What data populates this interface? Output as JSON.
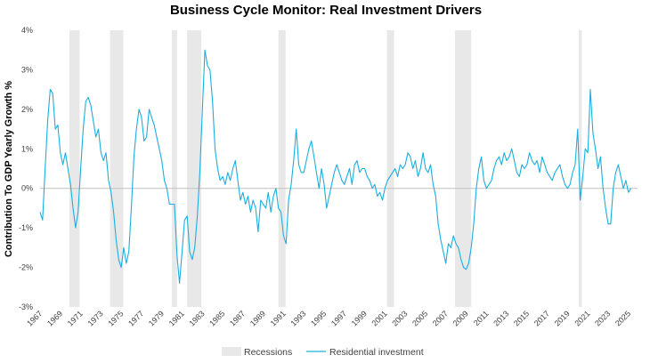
{
  "chart_data": {
    "type": "line",
    "title": "Business Cycle Monitor: Real Investment Drivers",
    "ylabel": "Contribution To GDP Yearly Growth %",
    "xlabel": "",
    "xlim": [
      1967.0,
      2025.9
    ],
    "ylim": [
      -3,
      4
    ],
    "y_ticks": [
      4,
      3,
      2,
      1,
      0,
      -1,
      -2,
      -3
    ],
    "y_tick_labels": [
      "4%",
      "3%",
      "2%",
      "1%",
      "0%",
      "-1%",
      "-2%",
      "-3%"
    ],
    "x_ticks": [
      1967,
      1969,
      1971,
      1973,
      1975,
      1977,
      1979,
      1981,
      1983,
      1985,
      1987,
      1989,
      1991,
      1993,
      1995,
      1997,
      1999,
      2001,
      2003,
      2005,
      2007,
      2009,
      2011,
      2013,
      2015,
      2017,
      2019,
      2021,
      2023,
      2025
    ],
    "x_tick_labels": [
      "1967",
      "1969",
      "1971",
      "1973",
      "1975",
      "1977",
      "1979",
      "1981",
      "1983",
      "1985",
      "1987",
      "1989",
      "1991",
      "1993",
      "1995",
      "1997",
      "1999",
      "2001",
      "2003",
      "2005",
      "2007",
      "2009",
      "2011",
      "2013",
      "2015",
      "2017",
      "2019",
      "2021",
      "2023",
      "2025"
    ],
    "recessions": [
      [
        1969.9,
        1970.9
      ],
      [
        1973.9,
        1975.2
      ],
      [
        1980.0,
        1980.5
      ],
      [
        1981.5,
        1982.9
      ],
      [
        1990.5,
        1991.2
      ],
      [
        2001.2,
        2001.9
      ],
      [
        2007.9,
        2009.5
      ],
      [
        2020.1,
        2020.4
      ]
    ],
    "series": [
      {
        "name": "Residential investment",
        "color": "#1aafe0",
        "points": [
          [
            1967.0,
            -0.6
          ],
          [
            1967.25,
            -0.8
          ],
          [
            1967.5,
            0.5
          ],
          [
            1967.75,
            1.7
          ],
          [
            1968.0,
            2.5
          ],
          [
            1968.25,
            2.4
          ],
          [
            1968.5,
            1.5
          ],
          [
            1968.75,
            1.6
          ],
          [
            1969.0,
            0.9
          ],
          [
            1969.25,
            0.6
          ],
          [
            1969.5,
            0.9
          ],
          [
            1969.75,
            0.5
          ],
          [
            1970.0,
            0.1
          ],
          [
            1970.25,
            -0.5
          ],
          [
            1970.5,
            -1.0
          ],
          [
            1970.75,
            -0.6
          ],
          [
            1971.0,
            0.5
          ],
          [
            1971.25,
            1.5
          ],
          [
            1971.5,
            2.2
          ],
          [
            1971.75,
            2.3
          ],
          [
            1972.0,
            2.1
          ],
          [
            1972.25,
            1.7
          ],
          [
            1972.5,
            1.3
          ],
          [
            1972.75,
            1.5
          ],
          [
            1973.0,
            0.9
          ],
          [
            1973.25,
            0.7
          ],
          [
            1973.5,
            0.9
          ],
          [
            1973.75,
            0.2
          ],
          [
            1974.0,
            -0.1
          ],
          [
            1974.25,
            -0.6
          ],
          [
            1974.5,
            -1.3
          ],
          [
            1974.75,
            -1.8
          ],
          [
            1975.0,
            -2.0
          ],
          [
            1975.25,
            -1.5
          ],
          [
            1975.5,
            -1.9
          ],
          [
            1975.75,
            -1.6
          ],
          [
            1976.0,
            -0.5
          ],
          [
            1976.25,
            0.8
          ],
          [
            1976.5,
            1.5
          ],
          [
            1976.75,
            2.0
          ],
          [
            1977.0,
            1.8
          ],
          [
            1977.25,
            1.2
          ],
          [
            1977.5,
            1.3
          ],
          [
            1977.75,
            2.0
          ],
          [
            1978.0,
            1.8
          ],
          [
            1978.25,
            1.6
          ],
          [
            1978.5,
            1.3
          ],
          [
            1978.75,
            1.0
          ],
          [
            1979.0,
            0.7
          ],
          [
            1979.25,
            0.2
          ],
          [
            1979.5,
            0.0
          ],
          [
            1979.75,
            -0.4
          ],
          [
            1980.0,
            -0.4
          ],
          [
            1980.25,
            -0.4
          ],
          [
            1980.5,
            -1.7
          ],
          [
            1980.75,
            -2.4
          ],
          [
            1981.0,
            -1.6
          ],
          [
            1981.25,
            -0.8
          ],
          [
            1981.5,
            -0.7
          ],
          [
            1981.75,
            -1.6
          ],
          [
            1982.0,
            -1.8
          ],
          [
            1982.25,
            -1.5
          ],
          [
            1982.5,
            -0.7
          ],
          [
            1982.75,
            0.4
          ],
          [
            1983.0,
            2.0
          ],
          [
            1983.25,
            3.5
          ],
          [
            1983.5,
            3.1
          ],
          [
            1983.75,
            3.0
          ],
          [
            1984.0,
            2.2
          ],
          [
            1984.25,
            1.0
          ],
          [
            1984.5,
            0.5
          ],
          [
            1984.75,
            0.2
          ],
          [
            1985.0,
            0.3
          ],
          [
            1985.25,
            0.1
          ],
          [
            1985.5,
            0.4
          ],
          [
            1985.75,
            0.2
          ],
          [
            1986.0,
            0.5
          ],
          [
            1986.25,
            0.7
          ],
          [
            1986.5,
            0.2
          ],
          [
            1986.75,
            -0.3
          ],
          [
            1987.0,
            -0.1
          ],
          [
            1987.25,
            -0.4
          ],
          [
            1987.5,
            -0.2
          ],
          [
            1987.75,
            -0.6
          ],
          [
            1988.0,
            -0.3
          ],
          [
            1988.25,
            -0.5
          ],
          [
            1988.5,
            -1.1
          ],
          [
            1988.75,
            -0.3
          ],
          [
            1989.0,
            -0.4
          ],
          [
            1989.25,
            -0.5
          ],
          [
            1989.5,
            -0.1
          ],
          [
            1989.75,
            -0.6
          ],
          [
            1990.0,
            -0.2
          ],
          [
            1990.25,
            0.0
          ],
          [
            1990.5,
            -0.5
          ],
          [
            1990.75,
            -0.6
          ],
          [
            1991.0,
            -1.2
          ],
          [
            1991.25,
            -1.4
          ],
          [
            1991.5,
            -0.3
          ],
          [
            1991.75,
            0.1
          ],
          [
            1992.0,
            0.7
          ],
          [
            1992.25,
            1.5
          ],
          [
            1992.5,
            0.6
          ],
          [
            1992.75,
            0.4
          ],
          [
            1993.0,
            0.4
          ],
          [
            1993.25,
            0.7
          ],
          [
            1993.5,
            1.0
          ],
          [
            1993.75,
            1.2
          ],
          [
            1994.0,
            0.8
          ],
          [
            1994.25,
            0.4
          ],
          [
            1994.5,
            0.0
          ],
          [
            1994.75,
            0.5
          ],
          [
            1995.0,
            0.1
          ],
          [
            1995.25,
            -0.5
          ],
          [
            1995.5,
            -0.2
          ],
          [
            1995.75,
            0.1
          ],
          [
            1996.0,
            0.4
          ],
          [
            1996.25,
            0.6
          ],
          [
            1996.5,
            0.4
          ],
          [
            1996.75,
            0.2
          ],
          [
            1997.0,
            0.1
          ],
          [
            1997.25,
            0.3
          ],
          [
            1997.5,
            0.5
          ],
          [
            1997.75,
            0.1
          ],
          [
            1998.0,
            0.6
          ],
          [
            1998.25,
            0.7
          ],
          [
            1998.5,
            0.4
          ],
          [
            1998.75,
            0.5
          ],
          [
            1999.0,
            0.5
          ],
          [
            1999.25,
            0.3
          ],
          [
            1999.5,
            0.2
          ],
          [
            1999.75,
            0.0
          ],
          [
            2000.0,
            0.1
          ],
          [
            2000.25,
            -0.2
          ],
          [
            2000.5,
            -0.1
          ],
          [
            2000.75,
            -0.3
          ],
          [
            2001.0,
            0.0
          ],
          [
            2001.25,
            0.2
          ],
          [
            2001.5,
            0.3
          ],
          [
            2001.75,
            0.4
          ],
          [
            2002.0,
            0.5
          ],
          [
            2002.25,
            0.3
          ],
          [
            2002.5,
            0.6
          ],
          [
            2002.75,
            0.5
          ],
          [
            2003.0,
            0.6
          ],
          [
            2003.25,
            0.9
          ],
          [
            2003.5,
            0.8
          ],
          [
            2003.75,
            0.5
          ],
          [
            2004.0,
            0.7
          ],
          [
            2004.25,
            0.3
          ],
          [
            2004.5,
            0.5
          ],
          [
            2004.75,
            0.9
          ],
          [
            2005.0,
            0.5
          ],
          [
            2005.25,
            0.4
          ],
          [
            2005.5,
            0.6
          ],
          [
            2005.75,
            0.1
          ],
          [
            2006.0,
            -0.2
          ],
          [
            2006.25,
            -0.9
          ],
          [
            2006.5,
            -1.3
          ],
          [
            2006.75,
            -1.6
          ],
          [
            2007.0,
            -1.9
          ],
          [
            2007.25,
            -1.4
          ],
          [
            2007.5,
            -1.5
          ],
          [
            2007.75,
            -1.2
          ],
          [
            2008.0,
            -1.4
          ],
          [
            2008.25,
            -1.5
          ],
          [
            2008.5,
            -1.8
          ],
          [
            2008.75,
            -2.0
          ],
          [
            2009.0,
            -2.05
          ],
          [
            2009.25,
            -1.9
          ],
          [
            2009.5,
            -1.5
          ],
          [
            2009.75,
            -0.9
          ],
          [
            2010.0,
            0.0
          ],
          [
            2010.25,
            0.5
          ],
          [
            2010.5,
            0.8
          ],
          [
            2010.75,
            0.2
          ],
          [
            2011.0,
            0.0
          ],
          [
            2011.25,
            0.1
          ],
          [
            2011.5,
            0.2
          ],
          [
            2011.75,
            0.5
          ],
          [
            2012.0,
            0.7
          ],
          [
            2012.25,
            0.8
          ],
          [
            2012.5,
            0.6
          ],
          [
            2012.75,
            0.9
          ],
          [
            2013.0,
            0.7
          ],
          [
            2013.25,
            0.8
          ],
          [
            2013.5,
            1.0
          ],
          [
            2013.75,
            0.7
          ],
          [
            2014.0,
            0.4
          ],
          [
            2014.25,
            0.3
          ],
          [
            2014.5,
            0.6
          ],
          [
            2014.75,
            0.5
          ],
          [
            2015.0,
            0.6
          ],
          [
            2015.25,
            0.9
          ],
          [
            2015.5,
            0.7
          ],
          [
            2015.75,
            0.6
          ],
          [
            2016.0,
            0.7
          ],
          [
            2016.25,
            0.4
          ],
          [
            2016.5,
            0.8
          ],
          [
            2016.75,
            0.6
          ],
          [
            2017.0,
            0.4
          ],
          [
            2017.25,
            0.3
          ],
          [
            2017.5,
            0.2
          ],
          [
            2017.75,
            0.4
          ],
          [
            2018.0,
            0.5
          ],
          [
            2018.25,
            0.6
          ],
          [
            2018.5,
            0.3
          ],
          [
            2018.75,
            0.1
          ],
          [
            2019.0,
            0.0
          ],
          [
            2019.25,
            0.1
          ],
          [
            2019.5,
            0.4
          ],
          [
            2019.75,
            0.6
          ],
          [
            2020.0,
            1.5
          ],
          [
            2020.25,
            -0.3
          ],
          [
            2020.5,
            0.3
          ],
          [
            2020.75,
            1.0
          ],
          [
            2021.0,
            0.9
          ],
          [
            2021.25,
            2.5
          ],
          [
            2021.5,
            1.4
          ],
          [
            2021.75,
            1.0
          ],
          [
            2022.0,
            0.5
          ],
          [
            2022.25,
            0.8
          ],
          [
            2022.5,
            0.0
          ],
          [
            2022.75,
            -0.5
          ],
          [
            2023.0,
            -0.9
          ],
          [
            2023.25,
            -0.9
          ],
          [
            2023.5,
            0.0
          ],
          [
            2023.75,
            0.4
          ],
          [
            2024.0,
            0.6
          ],
          [
            2024.25,
            0.3
          ],
          [
            2024.5,
            0.0
          ],
          [
            2024.75,
            0.2
          ],
          [
            2025.0,
            -0.1
          ],
          [
            2025.25,
            0.0
          ]
        ]
      }
    ],
    "legend": [
      {
        "label": "Recessions",
        "kind": "box",
        "color": "#e8e8e8"
      },
      {
        "label": "Residential investment",
        "kind": "line",
        "color": "#1aafe0"
      }
    ],
    "legend_position": "bottom"
  }
}
